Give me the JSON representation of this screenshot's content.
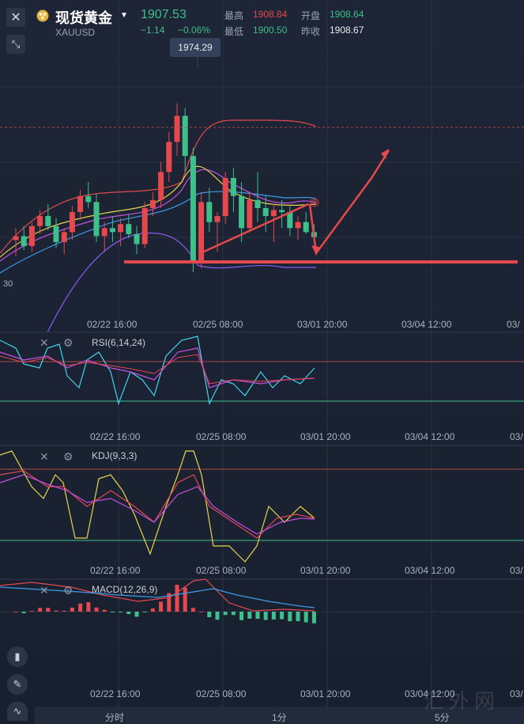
{
  "header": {
    "title": "现货黄金",
    "symbol": "XAUUSD",
    "price": "1907.53",
    "change": "−1.14",
    "change_pct": "−0.06%",
    "high_label": "最高",
    "high": "1908.84",
    "open_label": "开盘",
    "open": "1908.64",
    "low_label": "最低",
    "low": "1900.50",
    "prev_label": "昨收",
    "prev": "1908.67"
  },
  "colors": {
    "up": "#e5484d",
    "down": "#3fbf8a",
    "bg": "#1a2233"
  },
  "icons": {
    "close": "close-icon",
    "shrink": "shrink-icon",
    "coin": "gold-coin-icon"
  },
  "main": {
    "peak_tag": "1974.29",
    "left_tick": "30",
    "x_ticks": [
      "02/22 16:00",
      "02/25 08:00",
      "03/01 20:00",
      "03/04 12:00",
      "03/"
    ]
  },
  "rsi": {
    "title": "RSI(6,14,24)",
    "x_ticks": [
      "02/22 16:00",
      "02/25 08:00",
      "03/01 20:00",
      "03/04 12:00",
      "03/"
    ]
  },
  "kdj": {
    "title": "KDJ(9,3,3)",
    "x_ticks": [
      "02/22 16:00",
      "02/25 08:00",
      "03/01 20:00",
      "03/04 12:00",
      "03/"
    ]
  },
  "macd": {
    "title": "MACD(12,26,9)",
    "x_ticks": [
      "02/22 16:00",
      "02/25 08:00",
      "03/01 20:00",
      "03/04 12:00",
      "03/"
    ]
  },
  "timebar": {
    "items": [
      "分时",
      "1分",
      "5分"
    ]
  },
  "watermark": "汇外网",
  "chart_data": {
    "type": "candlestick",
    "title": "",
    "candles": [
      [
        1906,
        1912,
        1898,
        1908
      ],
      [
        1908,
        1913,
        1901,
        1903
      ],
      [
        1903,
        1915,
        1900,
        1913
      ],
      [
        1913,
        1921,
        1909,
        1918
      ],
      [
        1918,
        1924,
        1911,
        1913
      ],
      [
        1913,
        1917,
        1902,
        1905
      ],
      [
        1905,
        1912,
        1899,
        1910
      ],
      [
        1910,
        1923,
        1906,
        1920
      ],
      [
        1920,
        1931,
        1916,
        1928
      ],
      [
        1928,
        1935,
        1922,
        1925
      ],
      [
        1925,
        1929,
        1905,
        1908
      ],
      [
        1908,
        1915,
        1900,
        1912
      ],
      [
        1912,
        1918,
        1905,
        1910
      ],
      [
        1910,
        1917,
        1903,
        1914
      ],
      [
        1914,
        1919,
        1907,
        1909
      ],
      [
        1909,
        1913,
        1899,
        1904
      ],
      [
        1904,
        1925,
        1902,
        1922
      ],
      [
        1922,
        1930,
        1918,
        1926
      ],
      [
        1926,
        1945,
        1922,
        1940
      ],
      [
        1940,
        1960,
        1935,
        1955
      ],
      [
        1955,
        1974.29,
        1948,
        1968
      ],
      [
        1968,
        1972,
        1940,
        1948
      ],
      [
        1948,
        1952,
        1890,
        1895
      ],
      [
        1895,
        1930,
        1892,
        1925
      ],
      [
        1925,
        1932,
        1910,
        1915
      ],
      [
        1915,
        1920,
        1900,
        1918
      ],
      [
        1918,
        1940,
        1914,
        1937
      ],
      [
        1937,
        1942,
        1920,
        1928
      ],
      [
        1928,
        1935,
        1905,
        1912
      ],
      [
        1912,
        1930,
        1910,
        1926
      ],
      [
        1926,
        1940,
        1915,
        1922
      ],
      [
        1922,
        1928,
        1910,
        1918
      ],
      [
        1918,
        1924,
        1905,
        1921
      ],
      [
        1921,
        1926,
        1912,
        1920
      ],
      [
        1920,
        1923,
        1908,
        1912
      ],
      [
        1912,
        1918,
        1906,
        1915
      ],
      [
        1915,
        1920,
        1909,
        1910
      ],
      [
        1910,
        1914,
        1905,
        1907.53
      ]
    ],
    "ylim": [
      1860,
      2010
    ]
  }
}
